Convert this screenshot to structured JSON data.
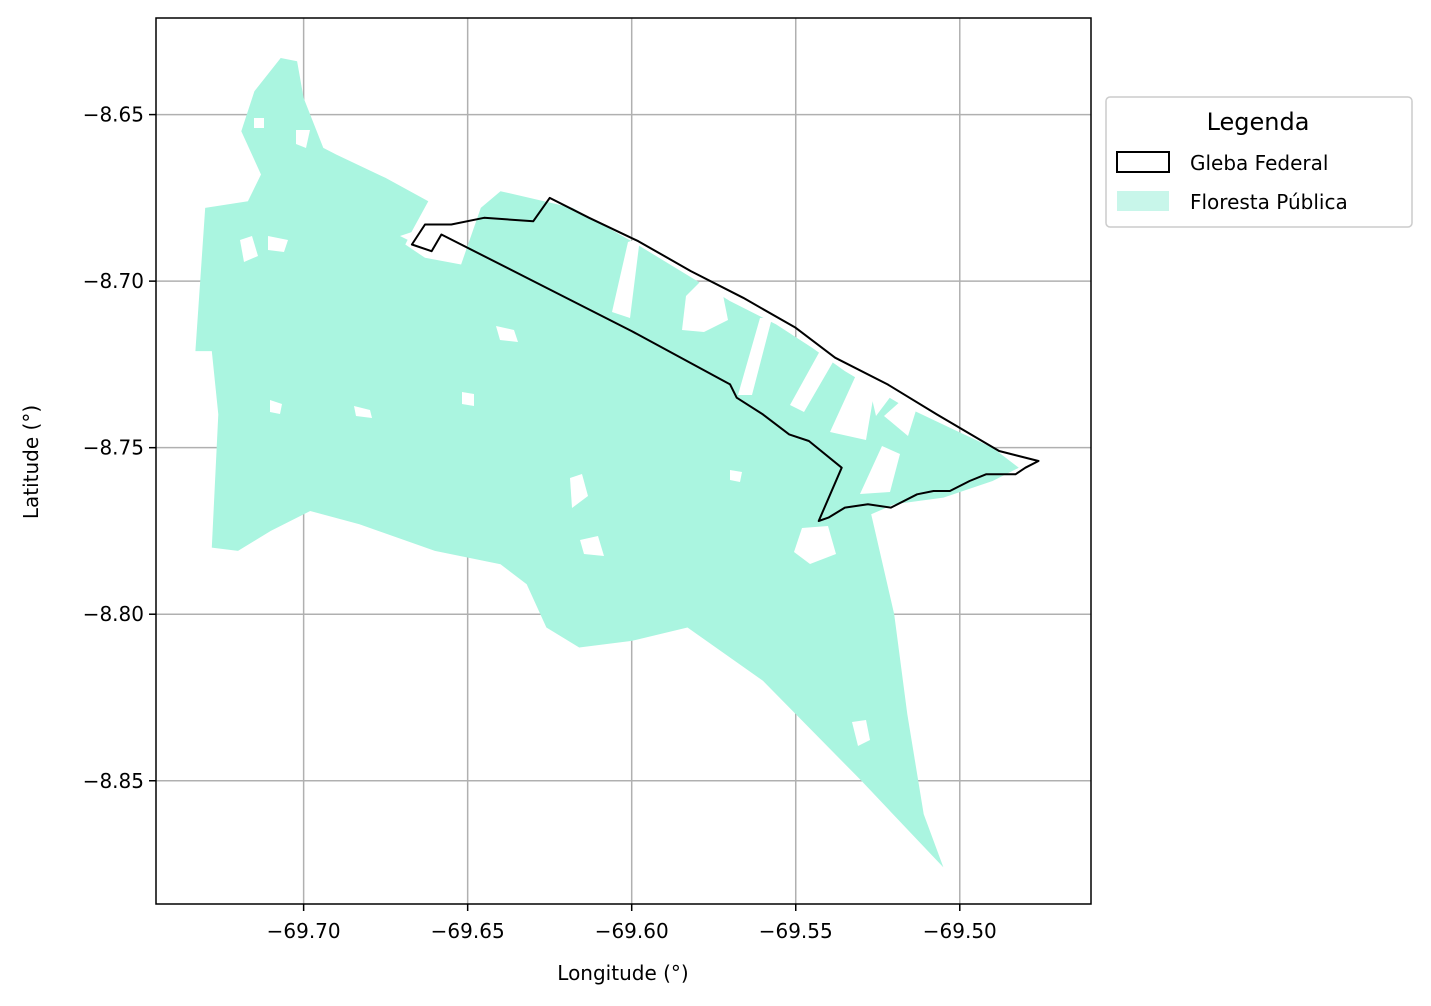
{
  "chart_data": {
    "type": "map",
    "xlabel": "Longitude (°)",
    "ylabel": "Latitude (°)",
    "xlim": [
      -69.745,
      -69.46
    ],
    "ylim": [
      -8.887,
      -8.621
    ],
    "xticks": [
      -69.7,
      -69.65,
      -69.6,
      -69.55,
      -69.5
    ],
    "xtick_labels": [
      "−69.70",
      "−69.65",
      "−69.60",
      "−69.55",
      "−69.50"
    ],
    "yticks": [
      -8.65,
      -8.7,
      -8.75,
      -8.8,
      -8.85
    ],
    "ytick_labels": [
      "−8.65",
      "−8.70",
      "−8.75",
      "−8.80",
      "−8.85"
    ],
    "grid": true,
    "legend": {
      "title": "Legenda",
      "placement": "outside-upper-right",
      "entries": [
        {
          "label": "Gleba Federal",
          "style": "outline",
          "color": "#000000"
        },
        {
          "label": "Floresta Pública",
          "style": "fill",
          "color": "#aaf5e0"
        }
      ]
    },
    "layers": [
      {
        "name": "Floresta Pública",
        "fill_color": "#aaf5e0",
        "polygons": [
          [
            [
              -69.733,
              -8.721
            ],
            [
              -69.73,
              -8.678
            ],
            [
              -69.717,
              -8.676
            ],
            [
              -69.713,
              -8.668
            ],
            [
              -69.719,
              -8.655
            ],
            [
              -69.715,
              -8.643
            ],
            [
              -69.707,
              -8.633
            ],
            [
              -69.702,
              -8.634
            ],
            [
              -69.7,
              -8.645
            ],
            [
              -69.694,
              -8.66
            ],
            [
              -69.69,
              -8.662
            ],
            [
              -69.675,
              -8.669
            ],
            [
              -69.662,
              -8.676
            ],
            [
              -69.667,
              -8.685
            ],
            [
              -69.669,
              -8.689
            ],
            [
              -69.663,
              -8.693
            ],
            [
              -69.652,
              -8.695
            ],
            [
              -69.646,
              -8.678
            ],
            [
              -69.64,
              -8.673
            ],
            [
              -69.618,
              -8.678
            ],
            [
              -69.6,
              -8.688
            ],
            [
              -69.585,
              -8.697
            ],
            [
              -69.57,
              -8.706
            ],
            [
              -69.556,
              -8.713
            ],
            [
              -69.545,
              -8.72
            ],
            [
              -69.535,
              -8.727
            ],
            [
              -69.518,
              -8.737
            ],
            [
              -69.503,
              -8.744
            ],
            [
              -69.49,
              -8.75
            ],
            [
              -69.482,
              -8.756
            ],
            [
              -69.49,
              -8.76
            ],
            [
              -69.505,
              -8.765
            ],
            [
              -69.52,
              -8.767
            ],
            [
              -69.527,
              -8.77
            ],
            [
              -69.52,
              -8.8
            ],
            [
              -69.516,
              -8.83
            ],
            [
              -69.511,
              -8.86
            ],
            [
              -69.505,
              -8.876
            ],
            [
              -69.53,
              -8.85
            ],
            [
              -69.56,
              -8.82
            ],
            [
              -69.583,
              -8.804
            ],
            [
              -69.6,
              -8.808
            ],
            [
              -69.616,
              -8.81
            ],
            [
              -69.626,
              -8.804
            ],
            [
              -69.632,
              -8.791
            ],
            [
              -69.64,
              -8.785
            ],
            [
              -69.66,
              -8.781
            ],
            [
              -69.683,
              -8.773
            ],
            [
              -69.698,
              -8.769
            ],
            [
              -69.71,
              -8.775
            ],
            [
              -69.72,
              -8.781
            ],
            [
              -69.728,
              -8.78
            ],
            [
              -69.726,
              -8.74
            ],
            [
              -69.728,
              -8.721
            ]
          ]
        ]
      },
      {
        "name": "Gleba Federal",
        "stroke_color": "#000000",
        "polygons": [
          [
            [
              -69.667,
              -8.689
            ],
            [
              -69.663,
              -8.683
            ],
            [
              -69.655,
              -8.683
            ],
            [
              -69.645,
              -8.681
            ],
            [
              -69.63,
              -8.682
            ],
            [
              -69.625,
              -8.675
            ],
            [
              -69.613,
              -8.681
            ],
            [
              -69.598,
              -8.688
            ],
            [
              -69.582,
              -8.697
            ],
            [
              -69.566,
              -8.705
            ],
            [
              -69.55,
              -8.714
            ],
            [
              -69.538,
              -8.723
            ],
            [
              -69.522,
              -8.731
            ],
            [
              -69.507,
              -8.74
            ],
            [
              -69.488,
              -8.751
            ],
            [
              -69.476,
              -8.754
            ],
            [
              -69.48,
              -8.756
            ],
            [
              -69.483,
              -8.758
            ],
            [
              -69.492,
              -8.758
            ],
            [
              -69.497,
              -8.76
            ],
            [
              -69.503,
              -8.763
            ],
            [
              -69.508,
              -8.763
            ],
            [
              -69.513,
              -8.764
            ],
            [
              -69.521,
              -8.768
            ],
            [
              -69.528,
              -8.767
            ],
            [
              -69.535,
              -8.768
            ],
            [
              -69.54,
              -8.771
            ],
            [
              -69.543,
              -8.772
            ],
            [
              -69.536,
              -8.756
            ],
            [
              -69.546,
              -8.748
            ],
            [
              -69.552,
              -8.746
            ],
            [
              -69.56,
              -8.74
            ],
            [
              -69.568,
              -8.735
            ],
            [
              -69.57,
              -8.731
            ],
            [
              -69.6,
              -8.715
            ],
            [
              -69.63,
              -8.7
            ],
            [
              -69.658,
              -8.686
            ],
            [
              -69.661,
              -8.691
            ],
            [
              -69.667,
              -8.689
            ]
          ]
        ]
      }
    ]
  }
}
